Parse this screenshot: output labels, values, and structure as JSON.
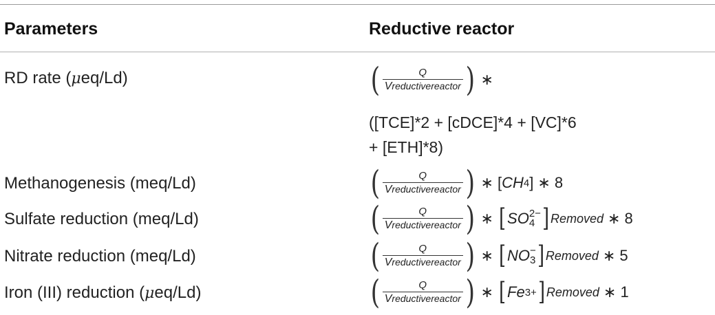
{
  "header": {
    "parameters": "Parameters",
    "reactor": "Reductive reactor"
  },
  "rows": [
    {
      "param_pre": "RD rate (",
      "param_mu": "μ",
      "param_post": "eq/Ld)",
      "numerator": "Q",
      "denominator_v": "V",
      "denominator_sub": "reductivereactor",
      "star": "∗",
      "line2": "([TCE]*2 + [cDCE]*4 + [VC]*6",
      "line3": "+ [ETH]*8)"
    },
    {
      "param": "Methanogenesis (meq/Ld)",
      "numerator": "Q",
      "denominator_v": "V",
      "denominator_sub": "reductivereactor",
      "species": "CH",
      "species_sub": "4",
      "tail": "∗ 8"
    },
    {
      "param": "Sulfate reduction (meq/Ld)",
      "numerator": "Q",
      "denominator_v": "V",
      "denominator_sub": "reductivereactor",
      "species": "SO",
      "species_sub": "4",
      "species_sup": "2−",
      "removed": "Removed",
      "tail": "∗ 8"
    },
    {
      "param": "Nitrate reduction (meq/Ld)",
      "numerator": "Q",
      "denominator_v": "V",
      "denominator_sub": "reductivereactor",
      "species": "NO",
      "species_sub": "3",
      "species_sup": "−",
      "removed": "Removed",
      "tail": "∗ 5"
    },
    {
      "param_pre": "Iron (III) reduction (",
      "param_mu": "μ",
      "param_post": "eq/Ld)",
      "numerator": "Q",
      "denominator_v": "V",
      "denominator_sub": "reductivereactor",
      "species": "Fe",
      "species_sup": "3+",
      "removed": "Removed",
      "tail": "∗ 1"
    }
  ]
}
